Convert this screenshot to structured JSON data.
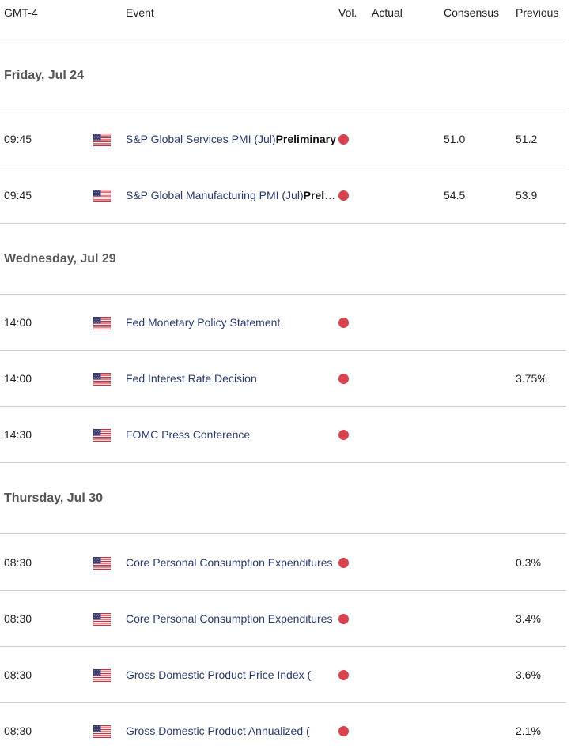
{
  "header": {
    "timezone": "GMT-4",
    "event": "Event",
    "vol": "Vol.",
    "actual": "Actual",
    "consensus": "Consensus",
    "previous": "Previous"
  },
  "colors": {
    "volatility_high": "#d9434f",
    "event_text": "#2a3a6e"
  },
  "days": [
    {
      "label": "Friday, Jul 24"
    },
    {
      "label": "Wednesday, Jul 29"
    },
    {
      "label": "Thursday, Jul 30"
    }
  ],
  "events": [
    {
      "time": "09:45",
      "country_icon": "us-flag-icon",
      "name": "S&P Global Services PMI (Jul)",
      "suffix": "Preliminary",
      "volatility": "high",
      "actual": "",
      "consensus": "51.0",
      "previous": "51.2"
    },
    {
      "time": "09:45",
      "country_icon": "us-flag-icon",
      "name": "S&P Global Manufacturing PMI (Jul)",
      "suffix": "Preliminary",
      "volatility": "high",
      "actual": "",
      "consensus": "54.5",
      "previous": "53.9"
    },
    {
      "time": "14:00",
      "country_icon": "us-flag-icon",
      "name": "Fed Monetary Policy Statement",
      "suffix": "",
      "volatility": "high",
      "actual": "",
      "consensus": "",
      "previous": ""
    },
    {
      "time": "14:00",
      "country_icon": "us-flag-icon",
      "name": "Fed Interest Rate Decision",
      "suffix": "",
      "volatility": "high",
      "actual": "",
      "consensus": "",
      "previous": "3.75%"
    },
    {
      "time": "14:30",
      "country_icon": "us-flag-icon",
      "name": "FOMC Press Conference",
      "suffix": "",
      "volatility": "high",
      "actual": "",
      "consensus": "",
      "previous": ""
    },
    {
      "time": "08:30",
      "country_icon": "us-flag-icon",
      "name": "Core Personal Consumption Expenditures",
      "suffix": "",
      "volatility": "high",
      "actual": "",
      "consensus": "",
      "previous": "0.3%"
    },
    {
      "time": "08:30",
      "country_icon": "us-flag-icon",
      "name": "Core Personal Consumption Expenditures",
      "suffix": "",
      "volatility": "high",
      "actual": "",
      "consensus": "",
      "previous": "3.4%"
    },
    {
      "time": "08:30",
      "country_icon": "us-flag-icon",
      "name": "Gross Domestic Product Price Index (",
      "suffix": "",
      "volatility": "high",
      "actual": "",
      "consensus": "",
      "previous": "3.6%"
    },
    {
      "time": "08:30",
      "country_icon": "us-flag-icon",
      "name": "Gross Domestic Product Annualized (",
      "suffix": "",
      "volatility": "high",
      "actual": "",
      "consensus": "",
      "previous": "2.1%"
    }
  ]
}
